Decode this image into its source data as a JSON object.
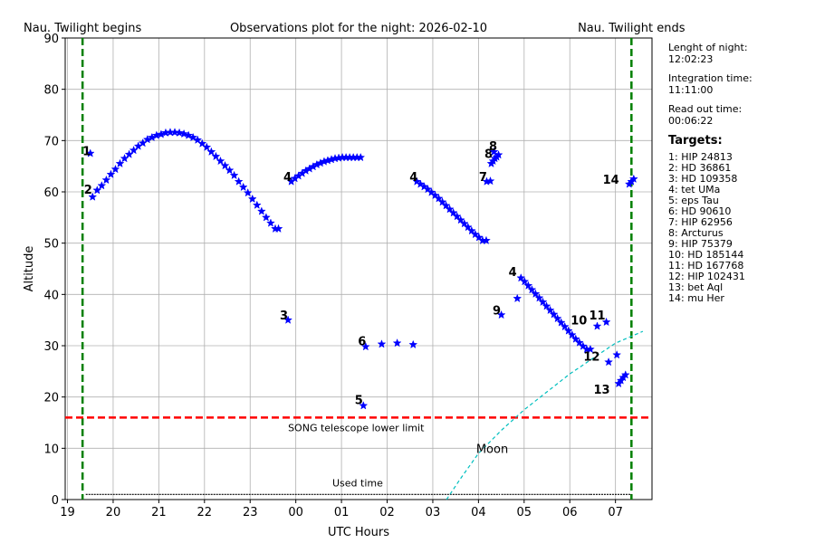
{
  "chart_data": {
    "type": "scatter",
    "title": "Observations plot for the night: 2026-02-10",
    "xlabel": "UTC Hours",
    "ylabel": "Altitude",
    "xlim": [
      18.95,
      31.8
    ],
    "ylim": [
      0,
      90
    ],
    "grid": true,
    "x_ticks": [
      19,
      20,
      21,
      22,
      23,
      24,
      25,
      26,
      27,
      28,
      29,
      30,
      31
    ],
    "x_tick_labels": [
      "19",
      "20",
      "21",
      "22",
      "23",
      "00",
      "01",
      "02",
      "03",
      "04",
      "05",
      "06",
      "07"
    ],
    "y_ticks": [
      0,
      10,
      20,
      30,
      40,
      50,
      60,
      70,
      80,
      90
    ],
    "y_tick_labels": [
      "0",
      "10",
      "20",
      "30",
      "40",
      "50",
      "60",
      "70",
      "80",
      "90"
    ],
    "twilight": {
      "begin_x": 19.33,
      "end_x": 31.35,
      "begin_label": "Nau. Twilight begins",
      "end_label": "Nau. Twilight ends",
      "color": "#008000"
    },
    "lower_limit": {
      "y": 16,
      "label": "SONG telescope lower limit",
      "color": "#ff0000"
    },
    "used_time": {
      "label": "Used time",
      "y": 1,
      "segments": [
        [
          19.4,
          25.5
        ],
        [
          25.52,
          26.6
        ],
        [
          26.6,
          28.47
        ],
        [
          28.5,
          30.45
        ],
        [
          30.45,
          31.35
        ]
      ]
    },
    "moon": {
      "label": "Moon",
      "color": "#00bfbf",
      "x": [
        27.3,
        27.6,
        28.0,
        28.5,
        29.0,
        29.5,
        30.0,
        30.5,
        31.0,
        31.6
      ],
      "y": [
        0,
        4,
        9,
        13.5,
        17.5,
        21,
        24.5,
        27.5,
        30.5,
        32.8
      ]
    },
    "star_color": "#0000ff",
    "series": [
      {
        "label": "1",
        "label_x": 19.42,
        "label_y": 68,
        "x": [
          19.5
        ],
        "y": [
          67.5
        ]
      },
      {
        "label": "2",
        "label_x": 19.45,
        "label_y": 60.5,
        "x": [
          19.55,
          19.65,
          19.75,
          19.85,
          19.95,
          20.05,
          20.15,
          20.25,
          20.35,
          20.45,
          20.55,
          20.65,
          20.75,
          20.85,
          20.95,
          21.05,
          21.15,
          21.25,
          21.35,
          21.45,
          21.55,
          21.65,
          21.75,
          21.85,
          21.95,
          22.05,
          22.15,
          22.25,
          22.35,
          22.45,
          22.55,
          22.65,
          22.75,
          22.85,
          22.95,
          23.05,
          23.15,
          23.25,
          23.35,
          23.45,
          23.55,
          23.62
        ],
        "y": [
          59.0,
          60.3,
          61.2,
          62.3,
          63.4,
          64.4,
          65.5,
          66.5,
          67.3,
          68.1,
          68.9,
          69.5,
          70.2,
          70.6,
          71.0,
          71.2,
          71.5,
          71.6,
          71.6,
          71.5,
          71.3,
          71.0,
          70.6,
          70.1,
          69.4,
          68.7,
          67.8,
          66.9,
          66.0,
          65.1,
          64.2,
          63.2,
          62.0,
          60.9,
          59.8,
          58.6,
          57.4,
          56.2,
          55.0,
          53.9,
          52.8,
          52.8
        ]
      },
      {
        "label": "3",
        "label_x": 23.74,
        "label_y": 36,
        "x": [
          23.83
        ],
        "y": [
          35.0
        ]
      },
      {
        "label": "4",
        "label_x": 23.82,
        "label_y": 63,
        "x": [
          23.9,
          23.98,
          24.06,
          24.14,
          24.22,
          24.3,
          24.38,
          24.46,
          24.54,
          24.62,
          24.7,
          24.78,
          24.86,
          24.94,
          25.02,
          25.1,
          25.18,
          25.26,
          25.34,
          25.42
        ],
        "y": [
          62.0,
          62.6,
          63.1,
          63.6,
          64.1,
          64.5,
          64.9,
          65.3,
          65.6,
          65.9,
          66.1,
          66.3,
          66.5,
          66.6,
          66.7,
          66.7,
          66.7,
          66.7,
          66.7,
          66.7
        ]
      },
      {
        "label": "5",
        "label_x": 25.38,
        "label_y": 19.5,
        "x": [
          25.48
        ],
        "y": [
          18.3
        ]
      },
      {
        "label": "6",
        "label_x": 25.45,
        "label_y": 31,
        "x": [
          25.53,
          25.88,
          26.22,
          26.57
        ],
        "y": [
          29.8,
          30.3,
          30.5,
          30.2
        ]
      },
      {
        "label": "4",
        "label_x": 26.58,
        "label_y": 63,
        "x": [
          26.65,
          26.73,
          26.81,
          26.89,
          26.97,
          27.05,
          27.13,
          27.21,
          27.29,
          27.37,
          27.45,
          27.53,
          27.61,
          27.69,
          27.77,
          27.85,
          27.93,
          28.01,
          28.09,
          28.17
        ],
        "y": [
          62.0,
          61.5,
          61.0,
          60.5,
          59.9,
          59.3,
          58.7,
          58.0,
          57.3,
          56.6,
          55.9,
          55.2,
          54.5,
          53.8,
          53.1,
          52.4,
          51.7,
          51.1,
          50.5,
          50.5
        ]
      },
      {
        "label": "7",
        "label_x": 28.1,
        "label_y": 63,
        "x": [
          28.18,
          28.26
        ],
        "y": [
          62.0,
          62.1
        ]
      },
      {
        "label": "8",
        "label_x": 28.22,
        "label_y": 67.5,
        "x": [
          28.28,
          28.32,
          28.36,
          28.4,
          28.44
        ],
        "y": [
          65.5,
          66.0,
          66.5,
          66.8,
          67.2
        ]
      },
      {
        "label": "8",
        "label_x": 28.32,
        "label_y": 69,
        "x": [
          28.34
        ],
        "y": [
          67.8
        ]
      },
      {
        "label": "9",
        "label_x": 28.4,
        "label_y": 37,
        "x": [
          28.5
        ],
        "y": [
          36.0
        ]
      },
      {
        "label": "4",
        "label_x": 28.75,
        "label_y": 44.5,
        "x": [
          28.93,
          29.01,
          29.09,
          29.17,
          29.25,
          29.33,
          29.41,
          29.49,
          29.57,
          29.65,
          29.73,
          29.81,
          29.89,
          29.97,
          30.05,
          30.13,
          30.21,
          30.29,
          30.37,
          30.45
        ],
        "y": [
          43.2,
          42.5,
          41.7,
          40.9,
          40.1,
          39.3,
          38.5,
          37.7,
          36.9,
          36.1,
          35.3,
          34.5,
          33.7,
          32.9,
          32.1,
          31.3,
          30.6,
          29.9,
          29.3,
          29.3
        ]
      },
      {
        "label": "",
        "label_x": 28.8,
        "label_y": 39,
        "x": [
          28.85
        ],
        "y": [
          39.2
        ]
      },
      {
        "label": "10",
        "label_x": 30.2,
        "label_y": 35,
        "x": [
          30.6
        ],
        "y": [
          33.8
        ]
      },
      {
        "label": "11",
        "label_x": 30.6,
        "label_y": 36,
        "x": [
          30.8
        ],
        "y": [
          34.6
        ]
      },
      {
        "label": "12",
        "label_x": 30.48,
        "label_y": 28,
        "x": [
          30.85,
          31.03
        ],
        "y": [
          26.8,
          28.2
        ]
      },
      {
        "label": "13",
        "label_x": 30.7,
        "label_y": 21.5,
        "x": [
          31.07,
          31.12,
          31.17,
          31.22
        ],
        "y": [
          22.6,
          23.2,
          23.8,
          24.3
        ]
      },
      {
        "label": "14",
        "label_x": 30.9,
        "label_y": 62.5,
        "x": [
          31.3,
          31.35,
          31.4
        ],
        "y": [
          61.5,
          62.0,
          62.5
        ]
      }
    ]
  },
  "info": {
    "length_label": "Lenght of night:",
    "length_value": "12:02:23",
    "integration_label": "Integration time:",
    "integration_value": "11:11:00",
    "readout_label": "Read out time:",
    "readout_value": "00:06:22",
    "targets_heading": "Targets:",
    "targets": [
      "1: HIP 24813",
      "2: HD 36861",
      "3: HD 109358",
      "4: tet UMa",
      "5: eps Tau",
      "6: HD 90610",
      "7: HIP 62956",
      "8: Arcturus",
      "9: HIP 75379",
      "10: HD 185144",
      "11: HD 167768",
      "12: HIP 102431",
      "13: bet Aql",
      "14: mu Her"
    ]
  }
}
